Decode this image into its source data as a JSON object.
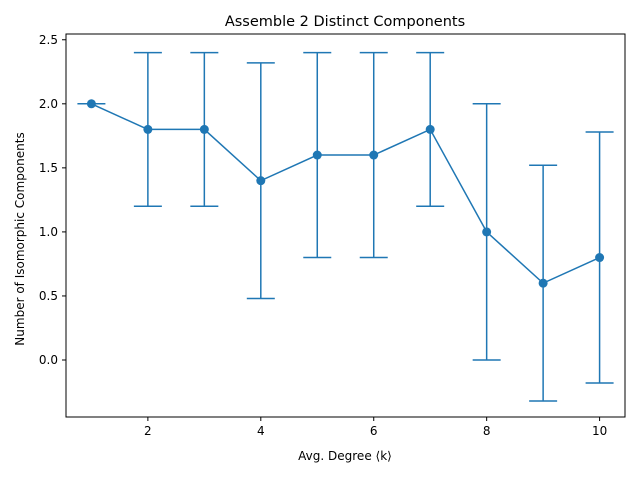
{
  "chart_data": {
    "type": "line",
    "title": "Assemble 2 Distinct Components",
    "xlabel": "Avg. Degree ⟨k⟩",
    "ylabel": "Number of Isomorphic Components",
    "x": [
      1,
      2,
      3,
      4,
      5,
      6,
      7,
      8,
      9,
      10
    ],
    "series": [
      {
        "values": [
          2.0,
          1.8,
          1.8,
          1.4,
          1.6,
          1.6,
          1.8,
          1.0,
          0.6,
          0.8
        ],
        "error": [
          0.0,
          0.6,
          0.6,
          0.92,
          0.8,
          0.8,
          0.6,
          1.0,
          0.92,
          0.98
        ],
        "color": "#1f77b4",
        "marker": "circle",
        "error_bars": true
      }
    ],
    "xlim": [
      0.55,
      10.45
    ],
    "ylim": [
      -0.445,
      2.545
    ],
    "xticks": [
      2,
      4,
      6,
      8,
      10
    ],
    "xtick_labels": [
      "2",
      "4",
      "6",
      "8",
      "10"
    ],
    "yticks": [
      0.0,
      0.5,
      1.0,
      1.5,
      2.0,
      2.5
    ],
    "ytick_labels": [
      "0.0",
      "0.5",
      "1.0",
      "1.5",
      "2.0",
      "2.5"
    ],
    "grid": false,
    "legend": "none"
  }
}
